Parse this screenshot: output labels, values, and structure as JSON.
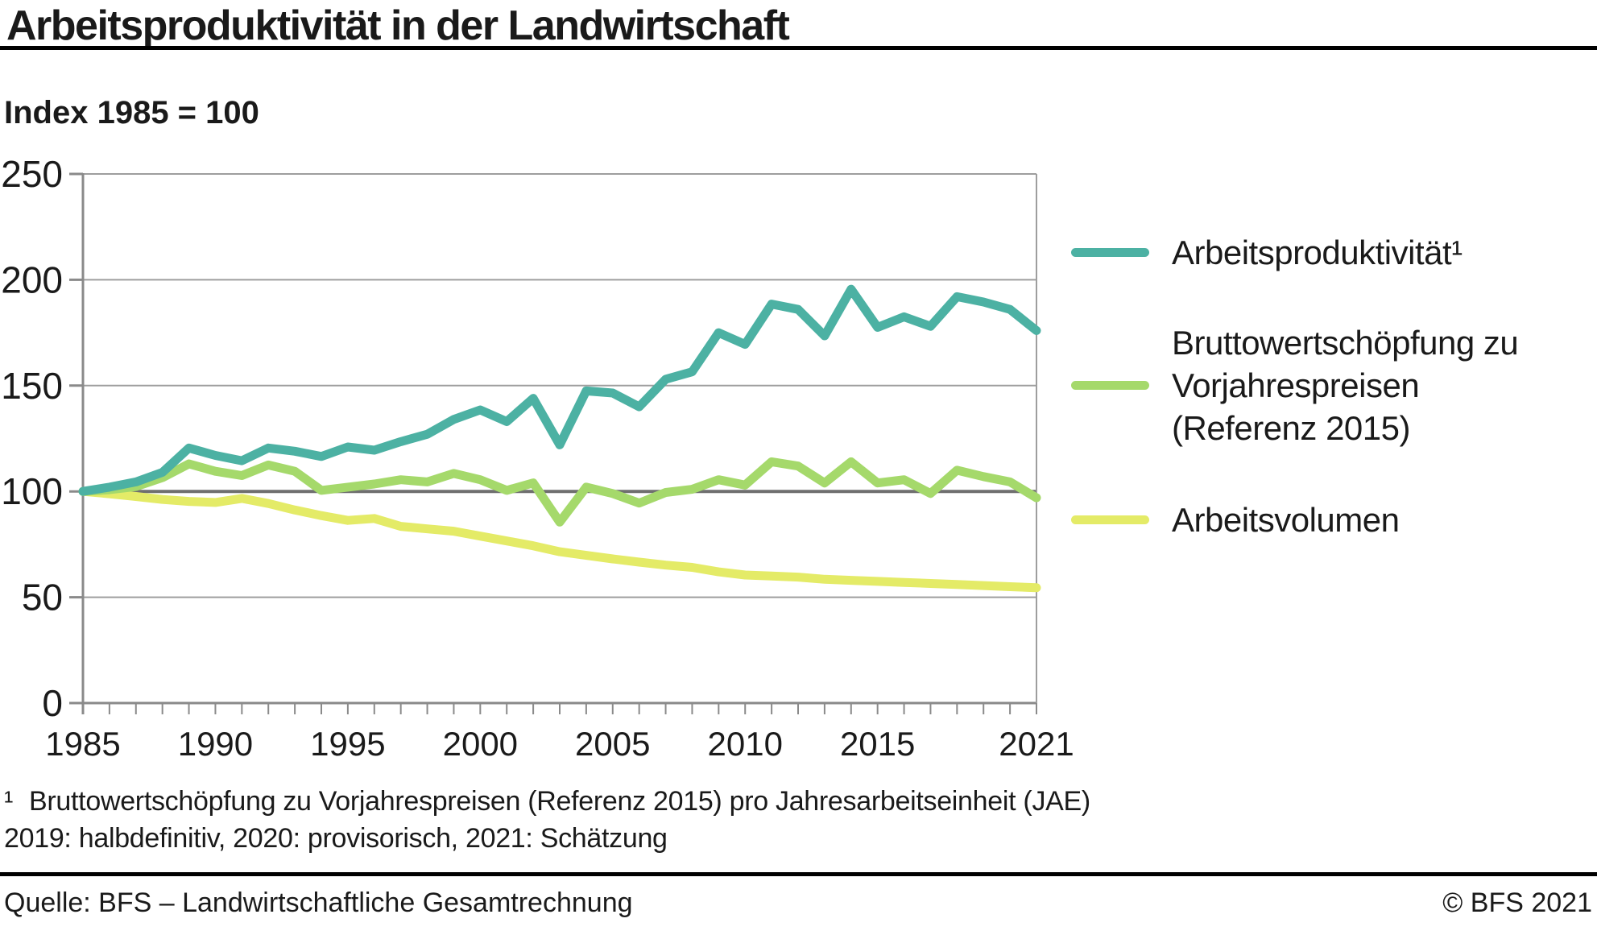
{
  "header": {
    "title": "Arbeitsproduktivität in der Landwirtschaft",
    "subtitle": "Index 1985 = 100"
  },
  "chart_data": {
    "type": "line",
    "title": "Arbeitsproduktivität in der Landwirtschaft",
    "subtitle": "Index 1985 = 100",
    "x": [
      1985,
      1986,
      1987,
      1988,
      1989,
      1990,
      1991,
      1992,
      1993,
      1994,
      1995,
      1996,
      1997,
      1998,
      1999,
      2000,
      2001,
      2002,
      2003,
      2004,
      2005,
      2006,
      2007,
      2008,
      2009,
      2010,
      2011,
      2012,
      2013,
      2014,
      2015,
      2016,
      2017,
      2018,
      2019,
      2020,
      2021
    ],
    "xtick_labels": [
      "1985",
      "1990",
      "1995",
      "2000",
      "2005",
      "2010",
      "2015",
      "2021"
    ],
    "yticks": [
      0,
      50,
      100,
      150,
      200,
      250
    ],
    "ylim": [
      0,
      250
    ],
    "grid": true,
    "emphasized_gridline": 100,
    "legend_position": "right",
    "axis_color": "#8a8a8a",
    "gridline_color": "#9e9e9e",
    "emphasized_gridline_color": "#6f6f6f",
    "series": [
      {
        "name": "Arbeitsproduktivität¹",
        "color": "#4cb1a3",
        "values": [
          100,
          102,
          104.5,
          109,
          120.5,
          117,
          114.5,
          120.5,
          119,
          116.5,
          121,
          119.5,
          123.5,
          127,
          134,
          138.5,
          133,
          144,
          122,
          147.5,
          146.5,
          140,
          153,
          156.5,
          175,
          169.5,
          188.5,
          186,
          173.5,
          195.5,
          177.5,
          182.5,
          178,
          192,
          189.5,
          186,
          176
        ]
      },
      {
        "name": "Bruttowertschöpfung zu\nVorjahrespreisen\n(Referenz 2015)",
        "color": "#a5d96b",
        "values": [
          100,
          100.8,
          102.3,
          106.5,
          113,
          109.5,
          107.5,
          112.5,
          109.5,
          100.5,
          102,
          103.5,
          105.5,
          104.5,
          108.5,
          105.5,
          100.5,
          104,
          85.5,
          102,
          99,
          94.5,
          99.5,
          101,
          105.5,
          103,
          114,
          112,
          104,
          114,
          104,
          105.5,
          99,
          110,
          107,
          104.5,
          97
        ]
      },
      {
        "name": "Arbeitsvolumen",
        "color": "#e4eb67",
        "values": [
          100,
          98.9,
          97.6,
          96.2,
          95.3,
          94.8,
          96.7,
          94.3,
          91.2,
          88.6,
          86.3,
          87.2,
          83.5,
          82.3,
          81.2,
          78.9,
          76.6,
          74.3,
          71.5,
          69.8,
          68.1,
          66.6,
          65.2,
          64.1,
          62,
          60.5,
          60,
          59.5,
          58.5,
          58,
          57.5,
          57,
          56.5,
          56,
          55.5,
          55,
          54.5
        ]
      }
    ]
  },
  "footnote": {
    "marker": "¹",
    "line1": "Bruttowertschöpfung zu Vorjahrespreisen (Referenz 2015) pro Jahresarbeitseinheit (JAE)",
    "line2": "2019: halbdefinitiv, 2020: provisorisch, 2021: Schätzung"
  },
  "footer": {
    "source": "Quelle: BFS – Landwirtschaftliche Gesamtrechnung",
    "copyright": "© BFS 2021"
  }
}
